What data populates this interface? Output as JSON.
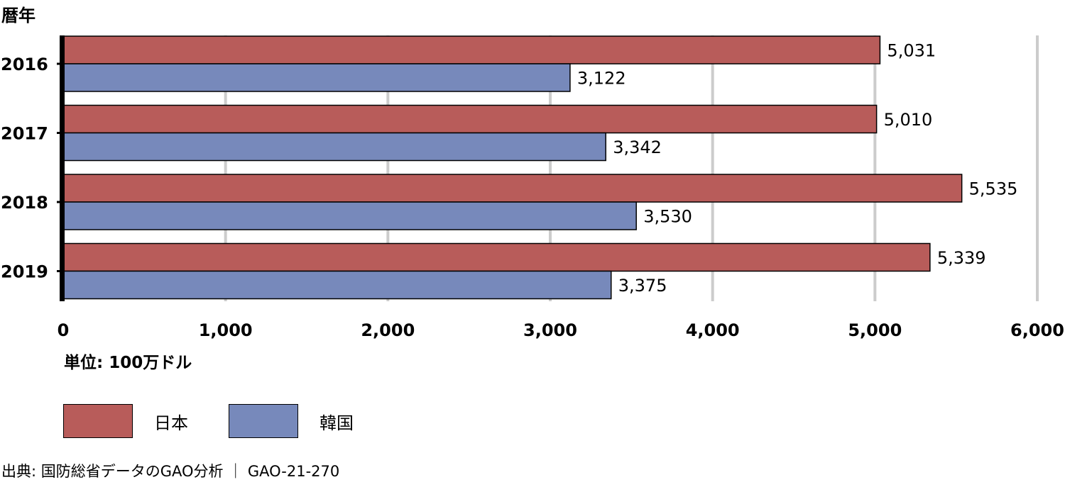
{
  "header": {
    "y_title": "暦年"
  },
  "unit_note": "単位: 100万ドル",
  "legend": [
    {
      "label": "日本",
      "color": "#b85c5a"
    },
    {
      "label": "韓国",
      "color": "#7789bb"
    }
  ],
  "source": "出典: 国防総省データのGAO分析 ｜ GAO-21-270",
  "chart_data": {
    "type": "bar",
    "orientation": "horizontal",
    "categories": [
      "2016",
      "2017",
      "2018",
      "2019"
    ],
    "series": [
      {
        "name": "日本",
        "values": [
          5031,
          5010,
          5535,
          5339
        ],
        "labels": [
          "5,031",
          "5,010",
          "5,535",
          "5,339"
        ]
      },
      {
        "name": "韓国",
        "values": [
          3122,
          3342,
          3530,
          3375
        ],
        "labels": [
          "3,122",
          "3,342",
          "3,530",
          "3,375"
        ]
      }
    ],
    "xlim": [
      0,
      6000
    ],
    "xticks": [
      0,
      1000,
      2000,
      3000,
      4000,
      5000,
      6000
    ],
    "xtick_labels": [
      "0",
      "1,000",
      "2,000",
      "3,000",
      "4,000",
      "5,000",
      "6,000"
    ],
    "ylabel": "暦年",
    "xlabel": "単位: 100万ドル",
    "grid": "vertical",
    "legend_position": "bottom-left"
  }
}
